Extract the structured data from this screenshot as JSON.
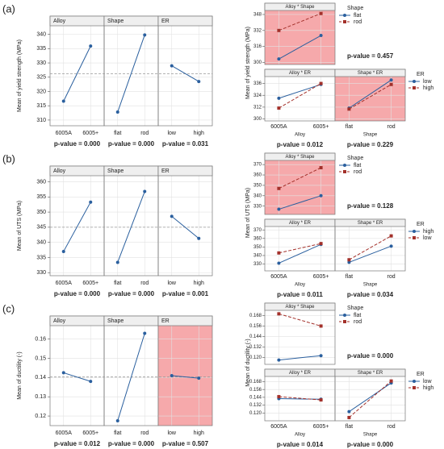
{
  "chart_data": [
    {
      "type": "line",
      "panel_label": "(a)",
      "ylabel": "Mean of yield strength (MPa)",
      "ylim": [
        308,
        343
      ],
      "yticks": [
        310,
        315,
        320,
        325,
        330,
        335,
        340
      ],
      "mean": 326.2,
      "grid": true,
      "color": "#2a5f9e",
      "panels": [
        {
          "title": "Alloy",
          "categories": [
            "6005A",
            "6005+"
          ],
          "values": [
            316.6,
            335.9
          ],
          "p_value": "p-value = 0.000"
        },
        {
          "title": "Shape",
          "categories": [
            "flat",
            "rod"
          ],
          "values": [
            312.8,
            339.8
          ],
          "p_value": "p-value = 0.000"
        },
        {
          "title": "ER",
          "categories": [
            "low",
            "high"
          ],
          "values": [
            329,
            323.5
          ],
          "p_value": "p-value = 0.031"
        }
      ]
    },
    {
      "type": "line",
      "ylabel": "Mean of yield strength (MPa)",
      "grid": true,
      "panels": [
        {
          "title": "Alloy * Shape",
          "highlight": true,
          "ylim": [
            298,
            352
          ],
          "yticks": [
            300,
            316,
            332,
            348
          ],
          "legend_title": "Shape",
          "p_value": "p-value = 0.457",
          "series": [
            {
              "name": "flat",
              "color": "#2a5f9e",
              "marker": "circle",
              "values": [
                303.5,
                327
              ]
            },
            {
              "name": "rod",
              "color": "#a3302a",
              "marker": "square",
              "dashed": true,
              "values": [
                332,
                349
              ]
            }
          ]
        },
        {
          "title": "Alloy * ER",
          "categories": [
            "6005A",
            "6005+"
          ],
          "xlabel": "Alloy",
          "ylim": [
            298,
            343
          ],
          "yticks": [
            300,
            312,
            324,
            336
          ],
          "p_value": "p-value = 0.012",
          "series": [
            {
              "color": "#2a5f9e",
              "marker": "circle",
              "values": [
                321,
                335
              ]
            },
            {
              "color": "#a3302a",
              "marker": "square",
              "dashed": true,
              "values": [
                311,
                336
              ]
            }
          ]
        },
        {
          "title": "Shape * ER",
          "highlight": true,
          "categories": [
            "flat",
            "rod"
          ],
          "xlabel": "Shape",
          "legend_title": "ER",
          "p_value": "p-value = 0.229",
          "series": [
            {
              "name": "low",
              "color": "#2a5f9e",
              "marker": "circle",
              "values": [
                311,
                339.5
              ]
            },
            {
              "name": "high",
              "color": "#a3302a",
              "marker": "square",
              "dashed": true,
              "values": [
                310,
                335
              ]
            }
          ]
        }
      ]
    },
    {
      "type": "line",
      "panel_label": "(b)",
      "ylabel": "Mean of UTS (MPa)",
      "ylim": [
        329,
        362
      ],
      "yticks": [
        330,
        335,
        340,
        345,
        350,
        355,
        360
      ],
      "mean": 345,
      "grid": true,
      "color": "#2a5f9e",
      "panels": [
        {
          "title": "Alloy",
          "categories": [
            "6005A",
            "6005+"
          ],
          "values": [
            337,
            353.3
          ],
          "p_value": "p-value = 0.000"
        },
        {
          "title": "Shape",
          "categories": [
            "flat",
            "rod"
          ],
          "values": [
            333.4,
            356.8
          ],
          "p_value": "p-value = 0.000"
        },
        {
          "title": "ER",
          "categories": [
            "low",
            "high"
          ],
          "values": [
            348.6,
            341.3
          ],
          "p_value": "p-value = 0.001"
        }
      ]
    },
    {
      "type": "line",
      "ylabel": "Mean of UTS (MPa)",
      "grid": true,
      "panels": [
        {
          "title": "Alloy * Shape",
          "highlight": true,
          "ylim": [
            322,
            374
          ],
          "yticks": [
            330,
            340,
            350,
            360,
            370
          ],
          "legend_title": "Shape",
          "p_value": "p-value = 0.128",
          "series": [
            {
              "name": "flat",
              "color": "#2a5f9e",
              "marker": "circle",
              "values": [
                327,
                340
              ]
            },
            {
              "name": "rod",
              "color": "#a3302a",
              "marker": "square",
              "dashed": true,
              "values": [
                347,
                367
              ]
            }
          ]
        },
        {
          "title": "Alloy * ER",
          "categories": [
            "6005A",
            "6005+"
          ],
          "xlabel": "Alloy",
          "ylim": [
            322,
            374
          ],
          "yticks": [
            330,
            340,
            350,
            360,
            370
          ],
          "p_value": "p-value = 0.011",
          "series": [
            {
              "color": "#2a5f9e",
              "marker": "circle",
              "values": [
                331,
                353
              ]
            },
            {
              "color": "#a3302a",
              "marker": "square",
              "dashed": true,
              "values": [
                343,
                354
              ]
            }
          ]
        },
        {
          "title": "Shape * ER",
          "categories": [
            "flat",
            "rod"
          ],
          "xlabel": "Shape",
          "legend_title": "ER",
          "p_value": "p-value = 0.034",
          "series": [
            {
              "name": "high",
              "color": "#2a5f9e",
              "marker": "circle",
              "values": [
                332,
                351
              ]
            },
            {
              "name": "low",
              "color": "#a3302a",
              "marker": "square",
              "dashed": true,
              "values": [
                335,
                363
              ]
            }
          ]
        }
      ]
    },
    {
      "type": "line",
      "panel_label": "(c)",
      "ylabel": "Mean of ductility (-)",
      "ylim": [
        0.115,
        0.167
      ],
      "yticks": [
        0.12,
        0.13,
        0.14,
        0.15,
        0.16
      ],
      "mean": 0.1403,
      "grid": true,
      "color": "#2a5f9e",
      "panels": [
        {
          "title": "Alloy",
          "categories": [
            "6005A",
            "6005+"
          ],
          "values": [
            0.1425,
            0.138
          ],
          "p_value": "p-value = 0.012"
        },
        {
          "title": "Shape",
          "categories": [
            "flat",
            "rod"
          ],
          "values": [
            0.1175,
            0.163
          ],
          "p_value": "p-value = 0.000"
        },
        {
          "title": "ER",
          "highlight": true,
          "categories": [
            "low",
            "high"
          ],
          "values": [
            0.141,
            0.1397
          ],
          "p_value": "p-value = 0.507"
        }
      ]
    },
    {
      "type": "line",
      "ylabel": "Mean of ductility (-)",
      "grid": true,
      "panels": [
        {
          "title": "Alloy * Shape",
          "ylim": [
            0.112,
            0.174
          ],
          "yticks": [
            {
              "value": 0.12,
              "label": "0.120"
            },
            0.132,
            0.144,
            0.156,
            0.168
          ],
          "legend_title": "Shape",
          "p_value": "p-value = 0.000",
          "series": [
            {
              "name": "flat",
              "color": "#2a5f9e",
              "marker": "circle",
              "values": [
                0.117,
                0.122
              ]
            },
            {
              "name": "rod",
              "color": "#a3302a",
              "marker": "square",
              "dashed": true,
              "values": [
                0.17,
                0.156
              ]
            }
          ]
        },
        {
          "title": "Alloy * ER",
          "categories": [
            "6005A",
            "6005+"
          ],
          "xlabel": "Alloy",
          "ylim": [
            0.108,
            0.176
          ],
          "yticks": [
            {
              "value": 0.12,
              "label": "0.120"
            },
            0.132,
            0.144,
            0.156,
            0.168
          ],
          "p_value": "p-value = 0.014",
          "series": [
            {
              "color": "#2a5f9e",
              "marker": "circle",
              "values": [
                0.142,
                0.141
              ]
            },
            {
              "color": "#a3302a",
              "marker": "square",
              "dashed": true,
              "values": [
                0.145,
                0.14
              ]
            }
          ]
        },
        {
          "title": "Shape * ER",
          "categories": [
            "flat",
            "rod"
          ],
          "xlabel": "Shape",
          "legend_title": "ER",
          "p_value": "p-value = 0.000",
          "series": [
            {
              "name": "low",
              "color": "#2a5f9e",
              "marker": "circle",
              "values": [
                0.122,
                0.166
              ]
            },
            {
              "name": "high",
              "color": "#a3302a",
              "marker": "square",
              "dashed": true,
              "values": [
                0.113,
                0.169
              ]
            }
          ]
        }
      ]
    }
  ]
}
